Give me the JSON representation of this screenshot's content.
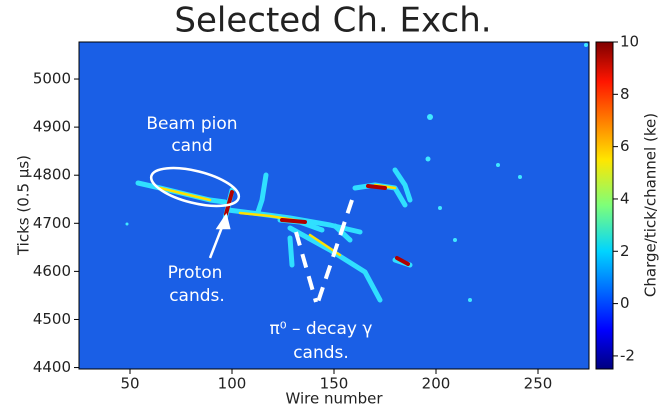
{
  "chart_data": {
    "type": "heatmap",
    "title": "Selected Ch. Exch.",
    "xlabel": "Wire number",
    "ylabel": "Ticks (0.5 μs)",
    "xlim": [
      25,
      275
    ],
    "xticks": [
      50,
      100,
      150,
      200,
      250
    ],
    "ylim": [
      4397,
      5077
    ],
    "yticks": [
      4400,
      4500,
      4600,
      4700,
      4800,
      4900,
      5000
    ],
    "colorbar_label": "Charge/tick/channel (ke)",
    "clim": [
      -2.5,
      10
    ],
    "cticks": [
      -2,
      0,
      2,
      4,
      6,
      8,
      10
    ],
    "annotations": [
      [
        "Beam pion",
        "cand"
      ],
      [
        "Proton",
        "cands."
      ],
      [
        "π⁰ – decay γ",
        "cands."
      ]
    ]
  }
}
